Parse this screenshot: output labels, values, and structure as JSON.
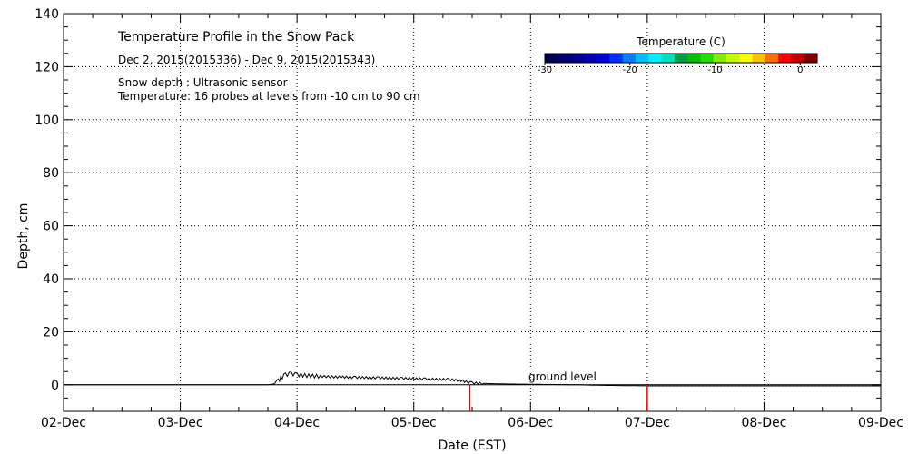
{
  "chart_data": {
    "type": "line",
    "title": "Temperature Profile in the Snow Pack",
    "subtitle": "Dec  2, 2015(2015336) - Dec  9, 2015(2015343)",
    "notes": [
      "Snow depth : Ultrasonic sensor",
      "Temperature: 16 probes at levels from -10 cm to 90 cm"
    ],
    "xlabel": "Date (EST)",
    "ylabel": "Depth, cm",
    "x_ticks": [
      "02-Dec",
      "03-Dec",
      "04-Dec",
      "05-Dec",
      "06-Dec",
      "07-Dec",
      "08-Dec",
      "09-Dec"
    ],
    "xlim": [
      0,
      7
    ],
    "ylim": [
      -10,
      140
    ],
    "y_ticks": [
      0,
      20,
      40,
      60,
      80,
      100,
      120,
      140
    ],
    "grid": true,
    "annotation": "ground level",
    "colorbar": {
      "title": "Temperature (C)",
      "tick_labels": [
        "-30",
        "-20",
        "-10",
        "0"
      ],
      "tick_values": [
        -30,
        -20,
        -10,
        0
      ],
      "range": [
        -30,
        2
      ],
      "colors": [
        "#000050",
        "#000070",
        "#00008f",
        "#0000b0",
        "#0000d8",
        "#0030ff",
        "#0080ff",
        "#00c0ff",
        "#00f0ff",
        "#00e0c0",
        "#00a040",
        "#00c000",
        "#20e000",
        "#80f000",
        "#c0ff00",
        "#ffff00",
        "#ffc000",
        "#ff7000",
        "#ff0000",
        "#c00000",
        "#800000"
      ]
    },
    "series": [
      {
        "kind": "snow_depth",
        "color": "#000000",
        "x": [
          0.0,
          1.7,
          1.75,
          1.8,
          1.84,
          1.86,
          1.9,
          1.95,
          2.0,
          2.1,
          2.2,
          2.3,
          2.5,
          2.7,
          2.9,
          3.1,
          3.3,
          3.42,
          3.45,
          3.5,
          3.6,
          3.8,
          4.0,
          4.2,
          4.4,
          4.6,
          4.8,
          5.0,
          7.0
        ],
        "y": [
          0,
          0,
          0,
          0.3,
          1.5,
          2.5,
          3.8,
          4.2,
          3.8,
          3.4,
          3.2,
          3.0,
          2.8,
          2.6,
          2.4,
          2.2,
          2.0,
          1.5,
          1.1,
          0.7,
          0.5,
          0.3,
          0.2,
          0.1,
          0.0,
          -0.2,
          -0.3,
          -0.4,
          -0.4
        ]
      },
      {
        "kind": "probe_marks",
        "color": "#ff0000",
        "x": [
          3.48,
          5.0
        ],
        "y": [
          -10,
          -10
        ]
      }
    ]
  }
}
